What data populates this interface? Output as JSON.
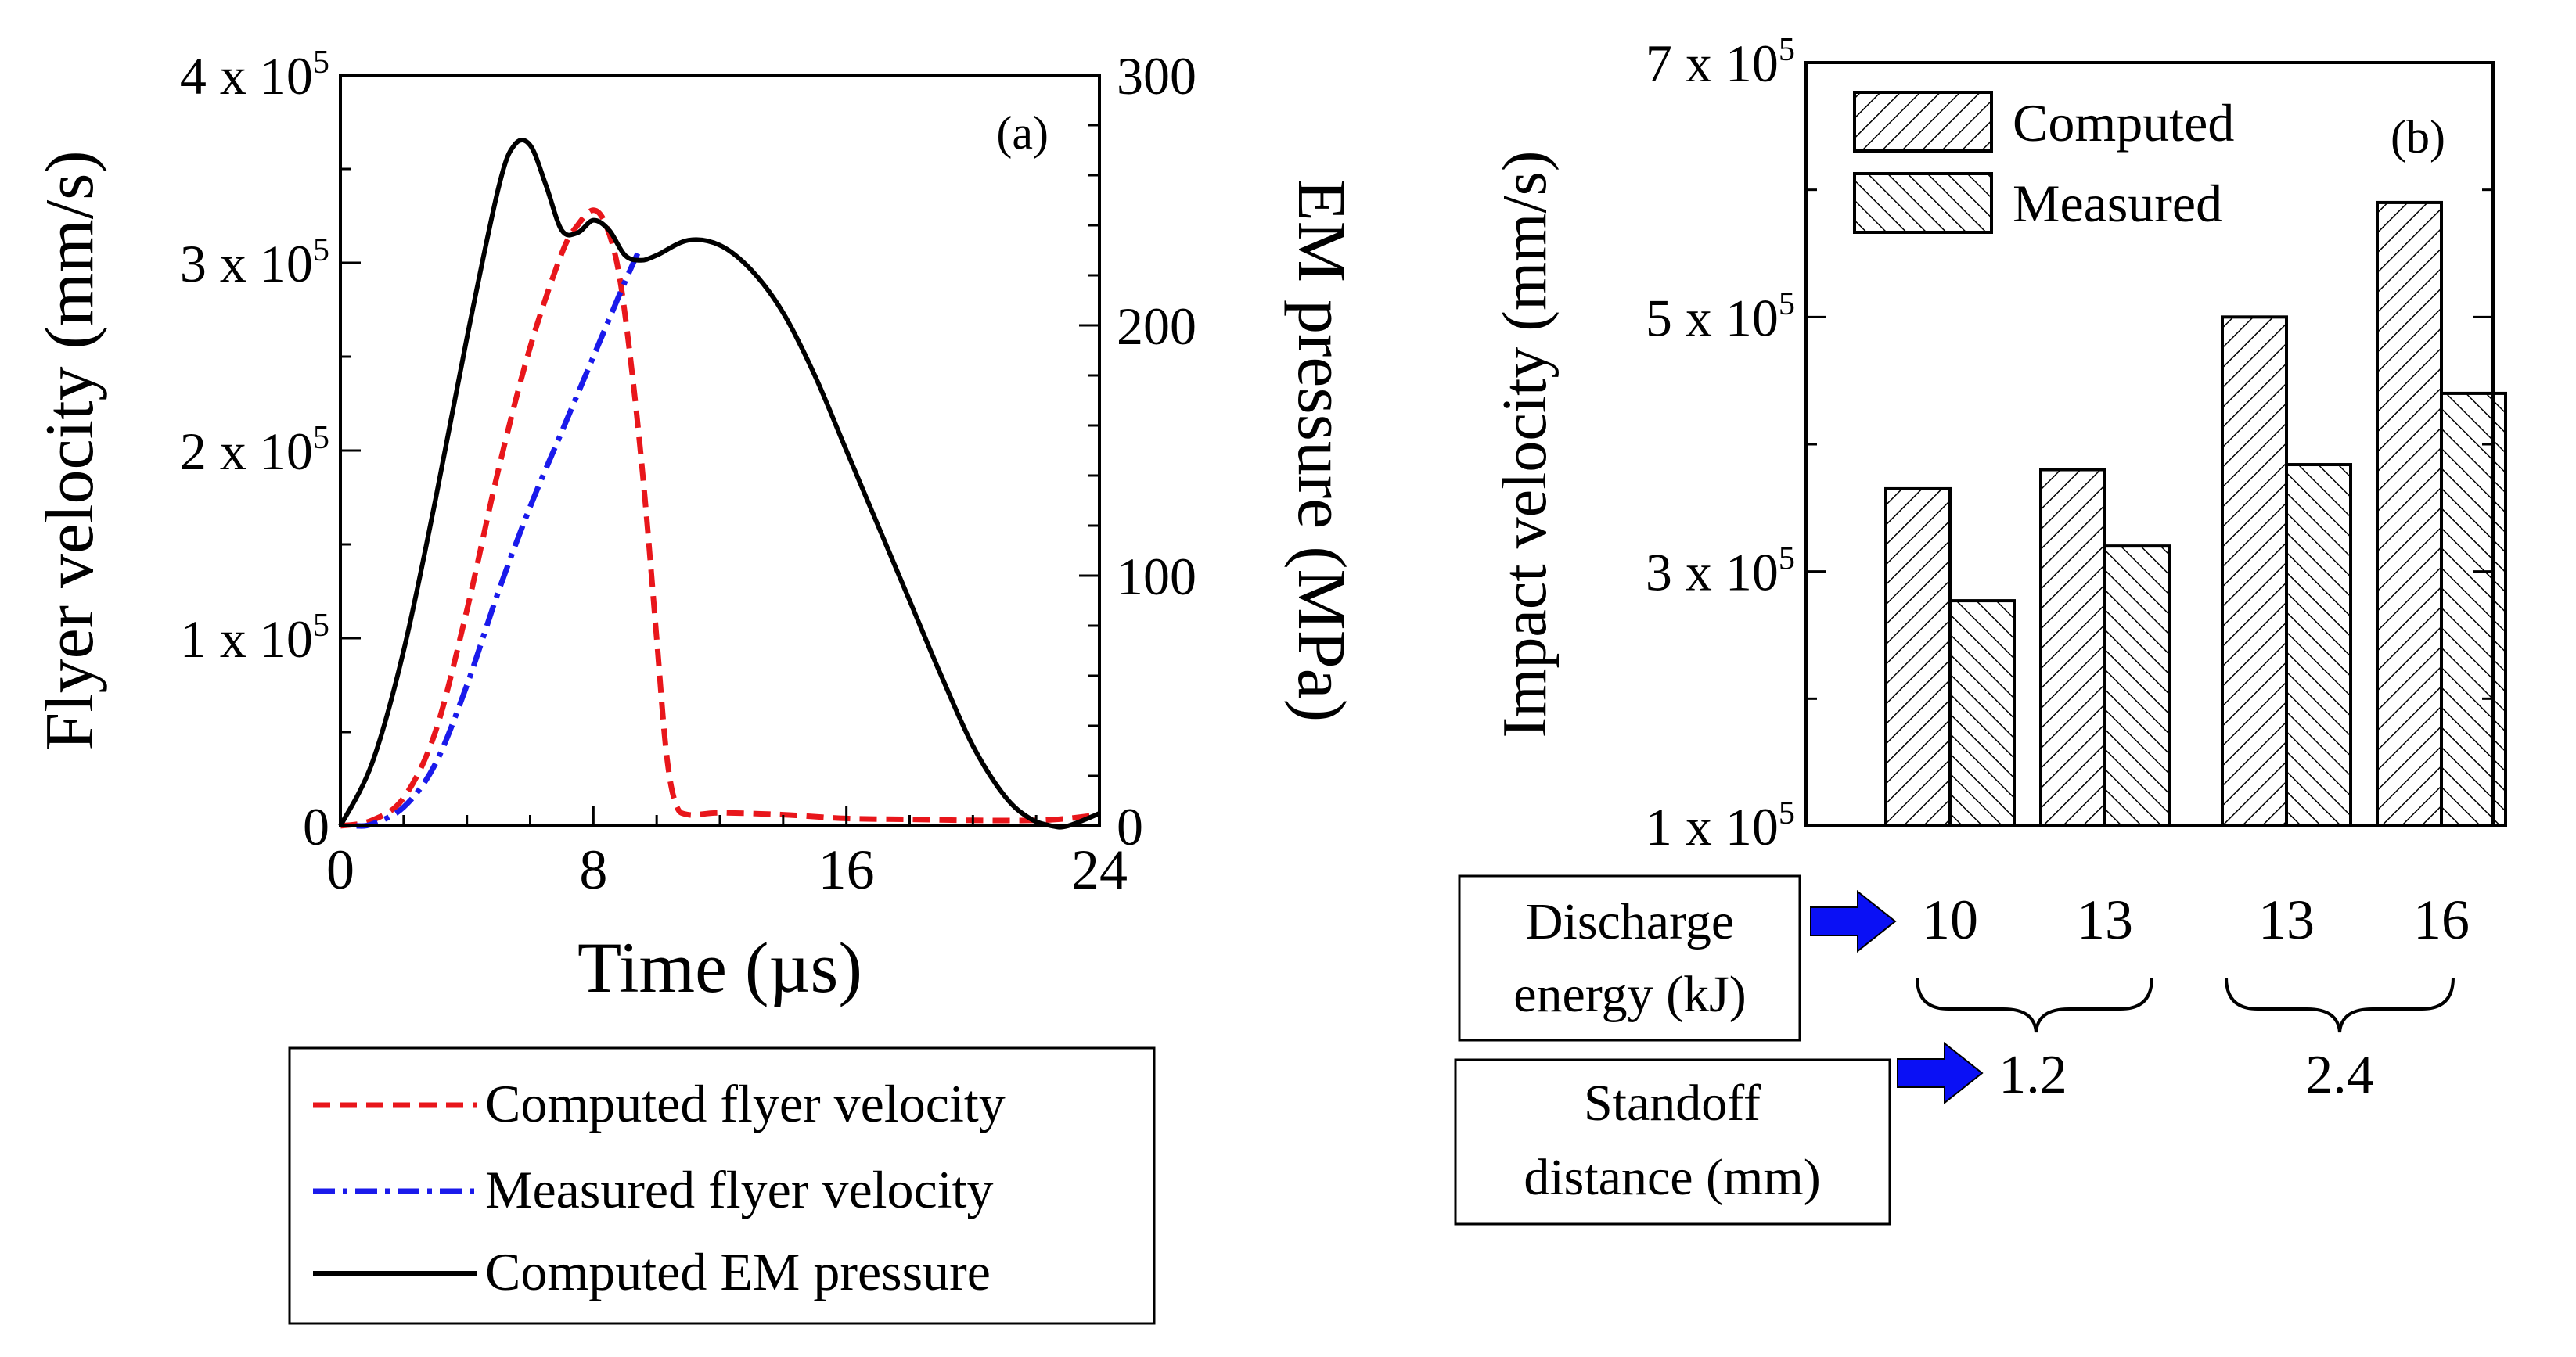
{
  "chart_data": [
    {
      "id": "a",
      "type": "line",
      "panel_label": "(a)",
      "xlabel": "Time (µs)",
      "ylabel_left": "Flyer velocity (mm/s)",
      "ylabel_right": "EM pressure (MPa)",
      "xlim": [
        0,
        24
      ],
      "ylim_left": [
        0,
        400000
      ],
      "ylim_right": [
        0,
        300
      ],
      "xticks": [
        0,
        8,
        16,
        24
      ],
      "xtick_labels": [
        "0",
        "8",
        "16",
        "24"
      ],
      "yticks_left": [
        0,
        100000,
        200000,
        300000,
        400000
      ],
      "ytick_labels_left": [
        {
          "base": "0",
          "exp": ""
        },
        {
          "base": "1 x 10",
          "exp": "5"
        },
        {
          "base": "2 x 10",
          "exp": "5"
        },
        {
          "base": "3 x 10",
          "exp": "5"
        },
        {
          "base": "4 x 10",
          "exp": "5"
        }
      ],
      "yticks_right": [
        0,
        100,
        200,
        300
      ],
      "ytick_labels_right": [
        "0",
        "100",
        "200",
        "300"
      ],
      "series": [
        {
          "name": "Computed flyer velocity",
          "axis": "left",
          "color": "#e8161b",
          "dash": "dashed",
          "x": [
            0,
            1,
            2,
            3,
            4,
            5,
            6,
            7,
            7.5,
            8,
            8.4,
            8.8,
            9.2,
            9.6,
            10,
            10.3,
            10.6,
            11,
            12,
            14,
            16,
            18,
            20,
            22,
            23,
            24
          ],
          "y": [
            0,
            3000,
            15000,
            50000,
            115000,
            190000,
            255000,
            305000,
            320000,
            328000,
            320000,
            295000,
            245000,
            180000,
            100000,
            40000,
            12000,
            6000,
            7000,
            6000,
            4000,
            3500,
            3000,
            3000,
            4000,
            6000
          ]
        },
        {
          "name": "Measured flyer velocity",
          "axis": "left",
          "color": "#1a1aeb",
          "dash": "dash-dot",
          "x": [
            0.5,
            1,
            2,
            3,
            4,
            5,
            6,
            7,
            8,
            8.5,
            9,
            9.4
          ],
          "y": [
            0,
            1000,
            10000,
            33000,
            75000,
            125000,
            170000,
            210000,
            250000,
            270000,
            290000,
            305000
          ]
        },
        {
          "name": "Computed EM pressure",
          "axis": "right",
          "color": "#000000",
          "dash": "solid",
          "x": [
            0,
            1,
            2,
            3,
            4,
            5,
            5.5,
            6,
            6.5,
            7,
            7.5,
            8,
            8.5,
            9,
            9.5,
            10,
            11,
            12,
            13,
            14,
            15,
            16,
            17,
            18,
            19,
            20,
            21,
            21.8,
            22.5,
            23,
            24
          ],
          "y": [
            0,
            25,
            70,
            130,
            195,
            255,
            272,
            272,
            256,
            238,
            237,
            242,
            238,
            228,
            226,
            228,
            234,
            232,
            222,
            205,
            180,
            150,
            120,
            90,
            60,
            32,
            12,
            3,
            0,
            0,
            5
          ]
        }
      ],
      "legend": {
        "placement": "below",
        "entries": [
          "Computed flyer velocity",
          "Measured flyer velocity",
          "Computed EM pressure"
        ]
      }
    },
    {
      "id": "b",
      "type": "bar",
      "panel_label": "(b)",
      "ylabel": "Impact velocity (mm/s)",
      "ylim": [
        100000,
        700000
      ],
      "yticks": [
        100000,
        300000,
        500000,
        700000
      ],
      "ytick_labels": [
        {
          "base": "1 x 10",
          "exp": "5"
        },
        {
          "base": "3 x 10",
          "exp": "5"
        },
        {
          "base": "5 x 10",
          "exp": "5"
        },
        {
          "base": "7 x 10",
          "exp": "5"
        }
      ],
      "categories": [
        "10",
        "13",
        "13",
        "16"
      ],
      "series": [
        {
          "name": "Computed",
          "hatch": "forward-diagonal",
          "values": [
            365000,
            380000,
            500000,
            590000
          ]
        },
        {
          "name": "Measured",
          "hatch": "back-diagonal",
          "values": [
            277000,
            320000,
            384000,
            440000
          ]
        }
      ],
      "legend": {
        "placement": "top-left",
        "entries": [
          "Computed",
          "Measured"
        ]
      },
      "discharge_label": [
        "Discharge",
        "energy (kJ)"
      ],
      "standoff_label": [
        "Standoff",
        "distance (mm)"
      ],
      "standoff_groups": [
        "1.2",
        "2.4"
      ],
      "arrow_color": "#0a10f5"
    }
  ]
}
